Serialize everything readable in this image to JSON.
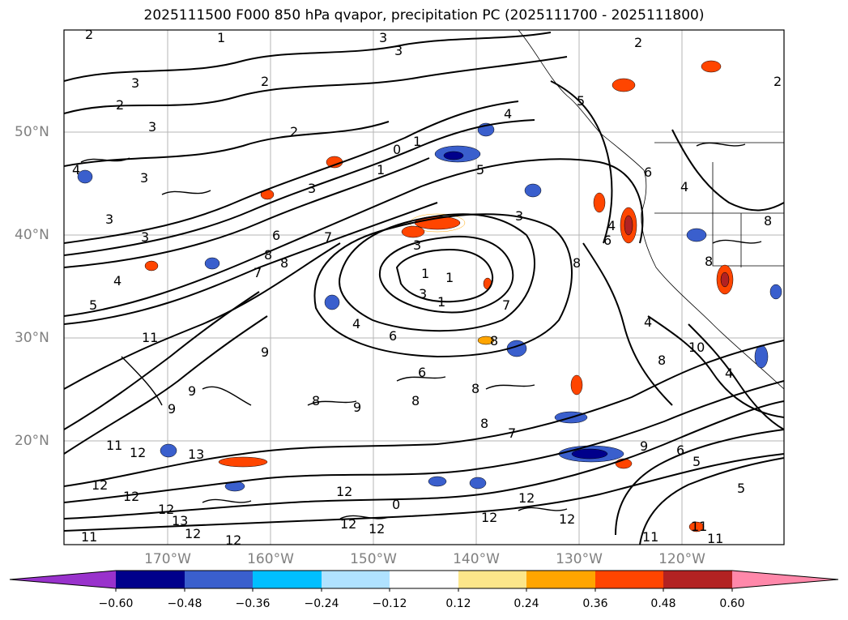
{
  "title": "2025111500 F000 850 hPa qvapor, precipitation PC (2025111700 - 2025111800)",
  "lat_labels": [
    "50°N",
    "40°N",
    "30°N",
    "20°N"
  ],
  "lon_labels": [
    "170°W",
    "160°W",
    "150°W",
    "140°W",
    "130°W",
    "120°W"
  ],
  "colorbar": {
    "ticks": [
      "−0.60",
      "−0.48",
      "−0.36",
      "−0.24",
      "−0.12",
      "0.12",
      "0.24",
      "0.36",
      "0.48",
      "0.60"
    ],
    "colors": [
      "#9932cc",
      "#00008b",
      "#3a5fcd",
      "#00bfff",
      "#b0e2ff",
      "#ffffff",
      "#fce68a",
      "#ffa500",
      "#ff4500",
      "#b22222",
      "#ff88aa"
    ]
  },
  "contour_labels": [
    "1",
    "2",
    "3",
    "4",
    "5",
    "6",
    "8",
    "9",
    "10",
    "11",
    "12",
    "13",
    "0"
  ],
  "palette": {
    "contour": "#000000",
    "grid": "#a0a0a0",
    "label_gray": "#808080"
  }
}
